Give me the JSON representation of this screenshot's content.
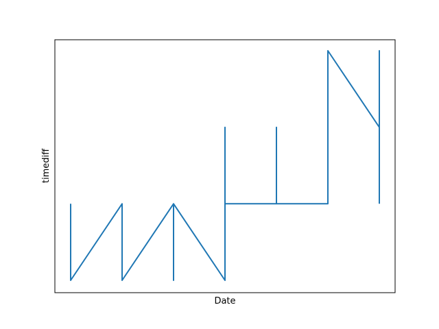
{
  "chart_data": {
    "type": "line",
    "title": "",
    "xlabel": "Date",
    "ylabel": "timediff",
    "grid": false,
    "x_ticks_visible": false,
    "y_ticks_visible": false,
    "series": [
      {
        "color": "#1f77b4",
        "x": [
          1,
          1,
          2,
          2,
          3,
          3,
          3,
          4,
          4,
          4,
          5,
          5,
          5,
          6,
          6,
          7,
          7,
          7
        ],
        "y": [
          2,
          1,
          2,
          1,
          2,
          1,
          2,
          1,
          3,
          2,
          2,
          3,
          2,
          2,
          4,
          3,
          4,
          2
        ]
      }
    ]
  }
}
